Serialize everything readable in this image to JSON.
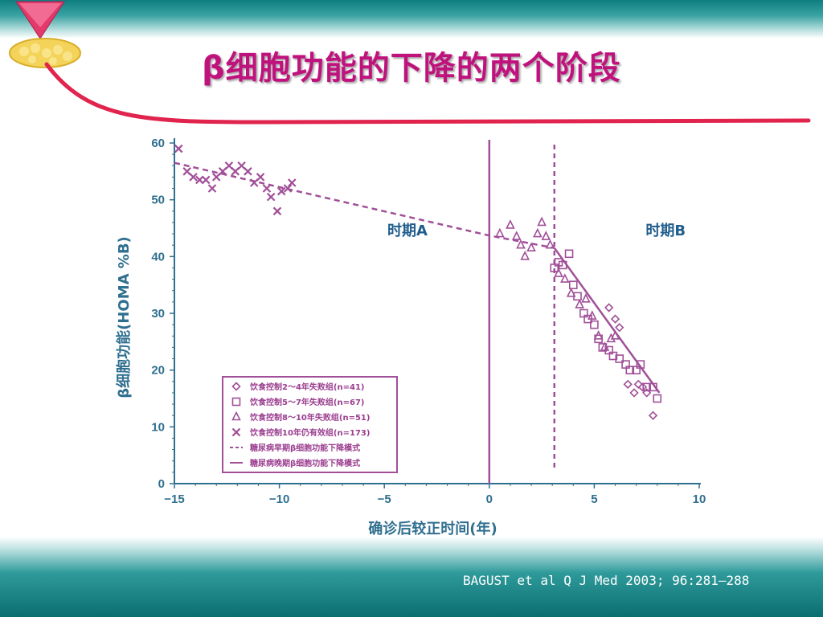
{
  "slide": {
    "title": "β细胞功能的下降的两个阶段",
    "citation": "BAGUST et al  Q J Med 2003; 96:281—288",
    "accent_color": "#c0127d",
    "icon": "pancreas-icon"
  },
  "chart_data": {
    "type": "scatter",
    "xlabel": "确诊后较正时间(年)",
    "ylabel": "β细胞功能(HOMA %B)",
    "xlim": [
      -15,
      10
    ],
    "ylim": [
      0,
      60
    ],
    "x_ticks": [
      -15,
      -10,
      -5,
      0,
      5,
      10
    ],
    "x_tick_labels": [
      "−15",
      "−10",
      "−5",
      "0",
      "5",
      "10"
    ],
    "y_ticks": [
      0,
      10,
      20,
      30,
      40,
      50,
      60
    ],
    "y_tick_labels": [
      "0",
      "10",
      "20",
      "30",
      "40",
      "50",
      "60"
    ],
    "grid": false,
    "legend_position": "bottom-left",
    "colors": {
      "series": "#a04f98",
      "axis": "#2f6f8f",
      "period_label": "#1f5d8c"
    },
    "period_labels": [
      {
        "text": "时期A",
        "x": -3.9,
        "y": 43.7
      },
      {
        "text": "时期B",
        "x": 8.4,
        "y": 43.7
      }
    ],
    "diagnosis_line_x": 0,
    "phase_boundary_x": 3.1,
    "legend": [
      "饮食控制2～4年失败组(n=41)",
      "饮食控制5～7年失败组(n=67)",
      "饮食控制8～10年失败组(n=51)",
      "饮食控制10年仍有效组(n=173)",
      "糖尿病早期β细胞功能下降模式",
      "糖尿病晚期β细胞功能下降模式"
    ],
    "series": [
      {
        "name": "饮食控制2～4年失败组(n=41)",
        "marker": "diamond",
        "points": [
          [
            5.7,
            31.0
          ],
          [
            6.0,
            29.0
          ],
          [
            6.2,
            27.5
          ],
          [
            6.6,
            17.5
          ],
          [
            6.9,
            16.0
          ],
          [
            7.1,
            17.5
          ],
          [
            7.3,
            17.0
          ],
          [
            7.5,
            16.0
          ],
          [
            7.8,
            12.0
          ]
        ]
      },
      {
        "name": "饮食控制5～7年失败组(n=67)",
        "marker": "square",
        "points": [
          [
            3.1,
            38.0
          ],
          [
            3.3,
            39.0
          ],
          [
            3.5,
            38.5
          ],
          [
            3.8,
            40.5
          ],
          [
            4.0,
            35.0
          ],
          [
            4.2,
            33.0
          ],
          [
            4.5,
            30.0
          ],
          [
            4.7,
            29.0
          ],
          [
            5.0,
            28.0
          ],
          [
            5.2,
            25.5
          ],
          [
            5.4,
            24.0
          ],
          [
            5.7,
            23.5
          ],
          [
            5.9,
            22.5
          ],
          [
            6.2,
            22.0
          ],
          [
            6.5,
            21.0
          ],
          [
            6.7,
            20.0
          ],
          [
            7.0,
            20.0
          ],
          [
            7.2,
            21.0
          ],
          [
            7.5,
            17.0
          ],
          [
            7.8,
            17.0
          ],
          [
            8.0,
            15.0
          ]
        ]
      },
      {
        "name": "饮食控制8～10年失败组(n=51)",
        "marker": "triangle",
        "points": [
          [
            0.5,
            44.0
          ],
          [
            1.0,
            45.5
          ],
          [
            1.3,
            43.5
          ],
          [
            1.5,
            42.0
          ],
          [
            1.7,
            40.0
          ],
          [
            2.0,
            41.5
          ],
          [
            2.3,
            44.0
          ],
          [
            2.5,
            46.0
          ],
          [
            2.7,
            43.5
          ],
          [
            2.9,
            42.0
          ],
          [
            3.3,
            37.0
          ],
          [
            3.6,
            36.0
          ],
          [
            3.9,
            33.5
          ],
          [
            4.3,
            31.5
          ],
          [
            4.6,
            32.5
          ],
          [
            4.9,
            29.5
          ],
          [
            5.2,
            26.0
          ],
          [
            5.5,
            24.0
          ],
          [
            5.8,
            25.5
          ],
          [
            6.0,
            26.0
          ]
        ]
      },
      {
        "name": "饮食控制10年仍有效组(n=173)",
        "marker": "x",
        "points": [
          [
            -14.8,
            59.0
          ],
          [
            -14.4,
            55.0
          ],
          [
            -14.1,
            54.0
          ],
          [
            -13.8,
            53.5
          ],
          [
            -13.5,
            53.5
          ],
          [
            -13.2,
            52.0
          ],
          [
            -13.0,
            54.0
          ],
          [
            -12.7,
            55.0
          ],
          [
            -12.4,
            56.0
          ],
          [
            -12.1,
            55.0
          ],
          [
            -11.8,
            56.0
          ],
          [
            -11.5,
            55.0
          ],
          [
            -11.2,
            53.0
          ],
          [
            -10.9,
            54.0
          ],
          [
            -10.6,
            52.0
          ],
          [
            -10.4,
            50.5
          ],
          [
            -10.1,
            48.0
          ],
          [
            -9.9,
            51.5
          ],
          [
            -9.6,
            52.0
          ],
          [
            -9.4,
            53.0
          ]
        ]
      }
    ],
    "trend_lines": [
      {
        "name": "糖尿病早期β细胞功能下降模式",
        "style": "dashed",
        "points": [
          [
            -15,
            56.5
          ],
          [
            0,
            43.7
          ],
          [
            3.1,
            41.5
          ]
        ]
      },
      {
        "name": "糖尿病晚期β细胞功能下降模式",
        "style": "solid",
        "points": [
          [
            3.1,
            41.5
          ],
          [
            8.1,
            16.0
          ]
        ]
      }
    ]
  }
}
